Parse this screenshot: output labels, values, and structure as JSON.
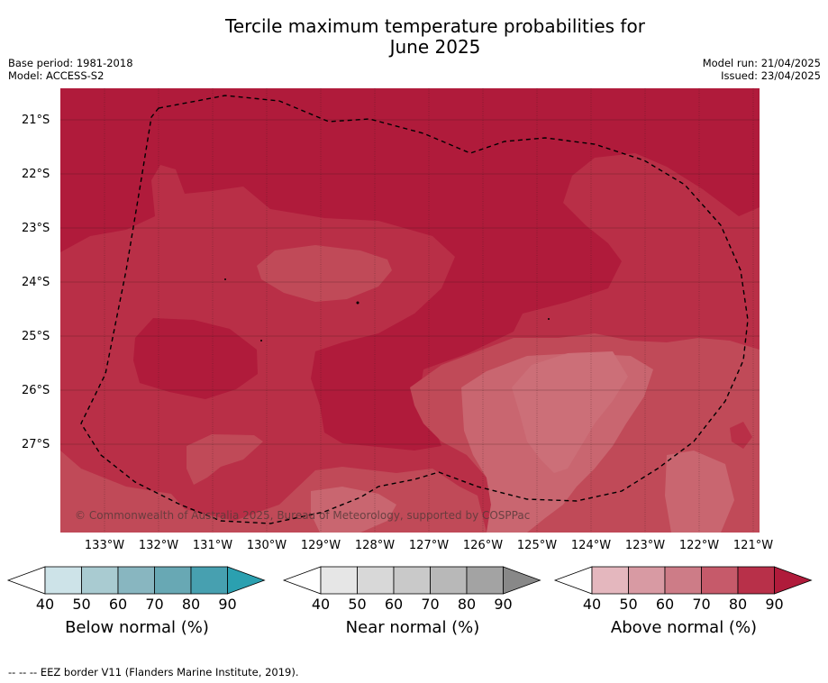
{
  "title_line1": "Tercile maximum temperature probabilities for",
  "title_line2": "June 2025",
  "base_period": "Base period: 1981-2018",
  "model": "Model: ACCESS-S2",
  "model_run": "Model run: 21/04/2025",
  "issued": "Issued: 23/04/2025",
  "lat_labels": [
    "21°S",
    "22°S",
    "23°S",
    "24°S",
    "25°S",
    "26°S",
    "27°S"
  ],
  "lon_labels": [
    "133°W",
    "132°W",
    "131°W",
    "130°W",
    "129°W",
    "128°W",
    "127°W",
    "126°W",
    "125°W",
    "124°W",
    "123°W",
    "122°W",
    "121°W"
  ],
  "copyright": "© Commonwealth of Australia 2025, Bureau of Meteorology, supported by COSPPac",
  "colorbars": [
    {
      "label": "Below normal (%)",
      "ticks": [
        "40",
        "50",
        "60",
        "70",
        "80",
        "90"
      ],
      "colors": [
        "#ffffff",
        "#cde3e8",
        "#a9cbd1",
        "#88b6c0",
        "#68a8b4",
        "#47a0b0",
        "#2ba0b0"
      ]
    },
    {
      "label": "Near normal (%)",
      "ticks": [
        "40",
        "50",
        "60",
        "70",
        "80",
        "90"
      ],
      "colors": [
        "#ffffff",
        "#e6e6e6",
        "#d8d8d8",
        "#c9c9c9",
        "#b8b8b8",
        "#a3a3a3",
        "#888888"
      ]
    },
    {
      "label": "Above normal (%)",
      "ticks": [
        "40",
        "50",
        "60",
        "70",
        "80",
        "90"
      ],
      "colors": [
        "#ffffff",
        "#e4b7be",
        "#d89aa3",
        "#cd7c87",
        "#c65a6a",
        "#b83049",
        "#b01b3b"
      ]
    }
  ],
  "map_colors": {
    "p90": "#b01b3b",
    "p80": "#b92f47",
    "p70": "#c04a58",
    "p60": "#c96670"
  },
  "footnote": "-- -- -- EEZ border V11 (Flanders Marine Institute, 2019)."
}
